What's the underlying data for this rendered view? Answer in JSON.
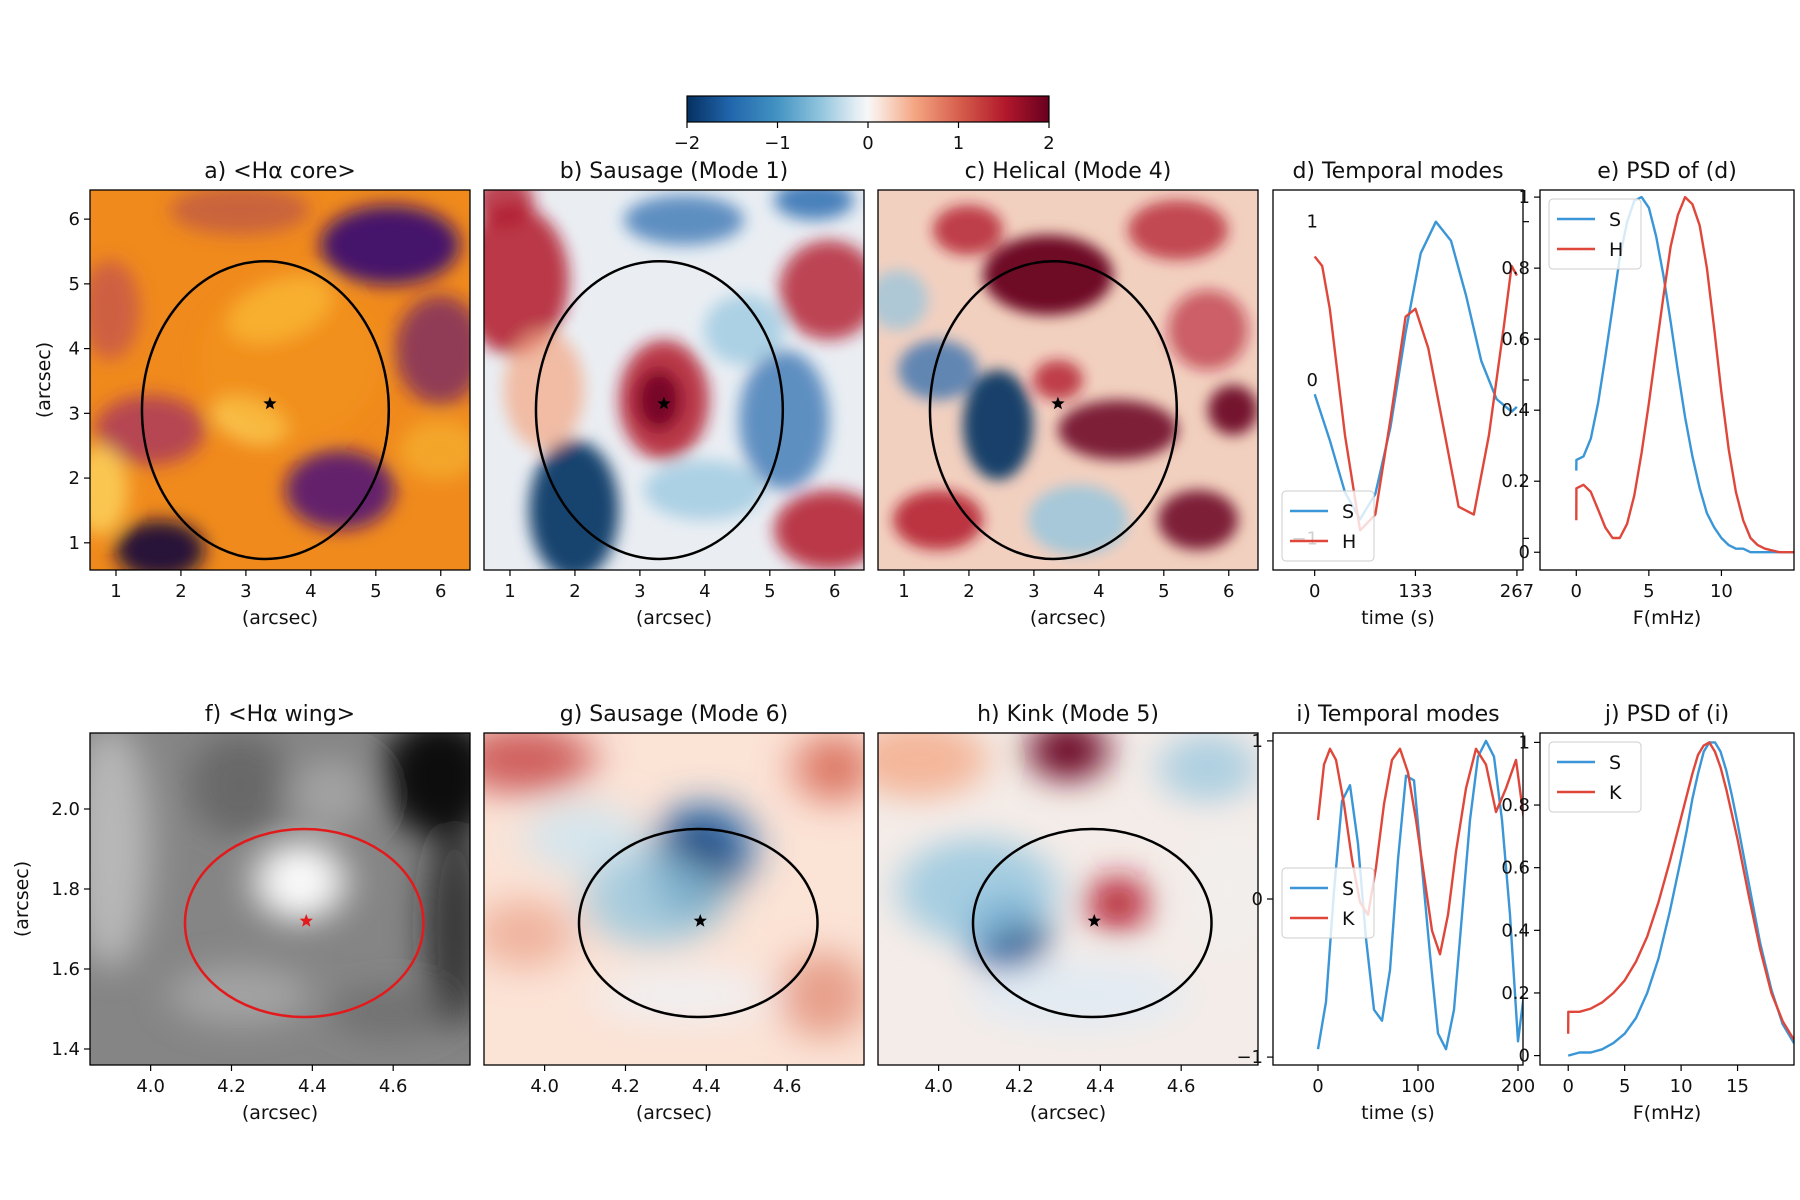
{
  "colors": {
    "S": "#3a96d6",
    "H": "#e0473b",
    "K": "#e0473b",
    "red_ellipse": "#e31a1c",
    "black": "#000000"
  },
  "colorbar": {
    "cmap": "RdBu_r",
    "range": [
      -2,
      2
    ],
    "ticks": [
      "−2",
      "−1",
      "0",
      "1",
      "2"
    ]
  },
  "chart_data": [
    {
      "id": "a",
      "type": "heatmap",
      "title": "a) <Hα core>",
      "cmap": "inferno-like",
      "xlabel": "(arcsec)",
      "ylabel": "(arcsec)",
      "xlim": [
        0.6,
        6.45
      ],
      "ylim": [
        0.58,
        6.45
      ],
      "xticks": [
        1,
        2,
        3,
        4,
        5,
        6
      ],
      "yticks": [
        1,
        2,
        3,
        4,
        5,
        6
      ],
      "ellipse": {
        "cx": 3.3,
        "cy": 3.05,
        "rx": 1.9,
        "ry": 2.3,
        "color": "black"
      },
      "marker": {
        "x": 3.37,
        "y": 3.15,
        "symbol": "star",
        "color": "black"
      }
    },
    {
      "id": "b",
      "type": "heatmap",
      "title": "b) Sausage (Mode 1)",
      "cmap": "RdBu_r",
      "xlabel": "(arcsec)",
      "xlim": [
        0.6,
        6.45
      ],
      "ylim": [
        0.58,
        6.45
      ],
      "xticks": [
        1,
        2,
        3,
        4,
        5,
        6
      ],
      "ellipse": {
        "cx": 3.3,
        "cy": 3.05,
        "rx": 1.9,
        "ry": 2.3,
        "color": "black"
      },
      "marker": {
        "x": 3.37,
        "y": 3.15,
        "symbol": "star",
        "color": "black"
      }
    },
    {
      "id": "c",
      "type": "heatmap",
      "title": "c) Helical (Mode 4)",
      "cmap": "RdBu_r",
      "xlabel": "(arcsec)",
      "xlim": [
        0.6,
        6.45
      ],
      "ylim": [
        0.58,
        6.45
      ],
      "xticks": [
        1,
        2,
        3,
        4,
        5,
        6
      ],
      "ellipse": {
        "cx": 3.3,
        "cy": 3.05,
        "rx": 1.9,
        "ry": 2.3,
        "color": "black"
      },
      "marker": {
        "x": 3.37,
        "y": 3.15,
        "symbol": "star",
        "color": "black"
      }
    },
    {
      "id": "d",
      "type": "line",
      "title": "d) Temporal modes",
      "xlabel": "time (s)",
      "xlim": [
        -55,
        275
      ],
      "ylim": [
        -1.2,
        1.2
      ],
      "xticks": [
        0,
        133,
        267
      ],
      "yticks": [
        -1,
        0,
        1
      ],
      "yticks_side": "right",
      "legend": "lower-left",
      "series": [
        {
          "name": "S",
          "color": "S",
          "x": [
            0,
            20,
            40,
            60,
            80,
            100,
            120,
            140,
            160,
            180,
            200,
            220,
            240,
            260,
            267
          ],
          "y": [
            -0.09,
            -0.38,
            -0.71,
            -0.88,
            -0.72,
            -0.3,
            0.3,
            0.8,
            1.0,
            0.88,
            0.53,
            0.12,
            -0.12,
            -0.2,
            -0.17
          ]
        },
        {
          "name": "H",
          "color": "H",
          "x": [
            0,
            10,
            20,
            30,
            40,
            60,
            80,
            100,
            120,
            133,
            150,
            170,
            190,
            210,
            230,
            250,
            260,
            267
          ],
          "y": [
            0.78,
            0.72,
            0.45,
            0.05,
            -0.35,
            -0.95,
            -0.85,
            -0.25,
            0.4,
            0.45,
            0.2,
            -0.3,
            -0.8,
            -0.85,
            -0.35,
            0.35,
            0.72,
            0.66
          ]
        }
      ]
    },
    {
      "id": "e",
      "type": "line",
      "title": "e) PSD of (d)",
      "xlabel": "F(mHz)",
      "xlim": [
        -2.5,
        15
      ],
      "ylim": [
        -0.05,
        1.02
      ],
      "xticks": [
        0,
        5,
        10
      ],
      "yticks": [
        0.0,
        0.2,
        0.4,
        0.6,
        0.8,
        1.0
      ],
      "legend": "top-left",
      "series": [
        {
          "name": "S",
          "color": "S",
          "x": [
            0,
            0.01,
            0.5,
            1,
            1.5,
            2,
            2.5,
            3,
            3.5,
            4,
            4.5,
            5,
            5.5,
            6,
            6.5,
            7,
            7.5,
            8,
            8.5,
            9,
            9.5,
            10,
            10.5,
            11,
            11.5,
            12,
            12.5,
            13,
            14,
            15
          ],
          "y": [
            0.23,
            0.26,
            0.27,
            0.32,
            0.42,
            0.55,
            0.69,
            0.83,
            0.93,
            0.99,
            1.0,
            0.97,
            0.89,
            0.78,
            0.65,
            0.51,
            0.38,
            0.27,
            0.18,
            0.11,
            0.07,
            0.04,
            0.02,
            0.01,
            0.01,
            0.0,
            0.0,
            0.0,
            0.0,
            0.0
          ]
        },
        {
          "name": "H",
          "color": "H",
          "x": [
            0,
            0.01,
            0.5,
            1,
            1.5,
            2,
            2.5,
            3,
            3.5,
            4,
            4.5,
            5,
            5.5,
            6,
            6.5,
            7,
            7.5,
            8,
            8.5,
            9,
            9.5,
            10,
            10.5,
            11,
            11.5,
            12,
            12.5,
            13,
            14,
            15
          ],
          "y": [
            0.09,
            0.18,
            0.19,
            0.17,
            0.12,
            0.07,
            0.04,
            0.04,
            0.08,
            0.16,
            0.28,
            0.42,
            0.57,
            0.72,
            0.86,
            0.95,
            1.0,
            0.98,
            0.92,
            0.8,
            0.63,
            0.45,
            0.29,
            0.17,
            0.09,
            0.04,
            0.02,
            0.01,
            0.0,
            0.0
          ]
        }
      ]
    },
    {
      "id": "f",
      "type": "heatmap",
      "title": "f) <Hα wing>",
      "cmap": "gray",
      "xlabel": "(arcsec)",
      "ylabel": "(arcsec)",
      "xlim": [
        3.85,
        4.79
      ],
      "ylim": [
        1.36,
        2.19
      ],
      "xticks": [
        4.0,
        4.2,
        4.4,
        4.6
      ],
      "xtick_labels": [
        "4.0",
        "4.2",
        "4.4",
        "4.6"
      ],
      "yticks": [
        1.4,
        1.6,
        1.8,
        2.0
      ],
      "ytick_labels": [
        "1.4",
        "1.6",
        "1.8",
        "2.0"
      ],
      "ellipse": {
        "cx": 4.38,
        "cy": 1.715,
        "rx": 0.295,
        "ry": 0.235,
        "color": "red"
      },
      "marker": {
        "x": 4.385,
        "y": 1.72,
        "symbol": "star",
        "color": "red"
      }
    },
    {
      "id": "g",
      "type": "heatmap",
      "title": "g) Sausage (Mode 6)",
      "cmap": "RdBu_r",
      "xlabel": "(arcsec)",
      "xlim": [
        3.85,
        4.79
      ],
      "ylim": [
        1.36,
        2.19
      ],
      "xticks": [
        4.0,
        4.2,
        4.4,
        4.6
      ],
      "xtick_labels": [
        "4.0",
        "4.2",
        "4.4",
        "4.6"
      ],
      "ellipse": {
        "cx": 4.38,
        "cy": 1.715,
        "rx": 0.295,
        "ry": 0.235,
        "color": "black"
      },
      "marker": {
        "x": 4.385,
        "y": 1.72,
        "symbol": "star",
        "color": "black"
      }
    },
    {
      "id": "h",
      "type": "heatmap",
      "title": "h) Kink (Mode 5)",
      "cmap": "RdBu_r",
      "xlabel": "(arcsec)",
      "xlim": [
        3.85,
        4.79
      ],
      "ylim": [
        1.36,
        2.19
      ],
      "xticks": [
        4.0,
        4.2,
        4.4,
        4.6
      ],
      "xtick_labels": [
        "4.0",
        "4.2",
        "4.4",
        "4.6"
      ],
      "ellipse": {
        "cx": 4.38,
        "cy": 1.715,
        "rx": 0.295,
        "ry": 0.235,
        "color": "black"
      },
      "marker": {
        "x": 4.385,
        "y": 1.72,
        "symbol": "star",
        "color": "black"
      }
    },
    {
      "id": "i",
      "type": "line",
      "title": "i) Temporal modes",
      "xlabel": "time (s)",
      "xlim": [
        -45,
        205
      ],
      "ylim": [
        -1.05,
        1.05
      ],
      "xticks": [
        0,
        100,
        200
      ],
      "yticks": [
        -1,
        0,
        1
      ],
      "legend": "center-left",
      "series": [
        {
          "name": "S",
          "color": "S",
          "x": [
            0,
            8,
            16,
            24,
            32,
            40,
            48,
            56,
            64,
            72,
            80,
            88,
            96,
            104,
            112,
            120,
            128,
            136,
            144,
            152,
            160,
            168,
            176,
            184,
            192,
            200,
            206
          ],
          "y": [
            -0.95,
            -0.65,
            0.05,
            0.62,
            0.72,
            0.35,
            -0.25,
            -0.7,
            -0.77,
            -0.45,
            0.25,
            0.78,
            0.75,
            0.2,
            -0.35,
            -0.85,
            -0.95,
            -0.7,
            -0.1,
            0.5,
            0.9,
            1.0,
            0.9,
            0.5,
            -0.1,
            -0.9,
            -0.6
          ]
        },
        {
          "name": "K",
          "color": "K",
          "x": [
            0,
            6,
            12,
            18,
            26,
            34,
            42,
            50,
            58,
            66,
            74,
            82,
            90,
            98,
            106,
            114,
            122,
            130,
            138,
            148,
            158,
            168,
            178,
            188,
            198,
            206
          ],
          "y": [
            0.5,
            0.85,
            0.95,
            0.88,
            0.6,
            0.25,
            -0.02,
            -0.1,
            0.2,
            0.6,
            0.88,
            0.95,
            0.8,
            0.5,
            0.15,
            -0.2,
            -0.35,
            -0.1,
            0.3,
            0.7,
            0.95,
            0.85,
            0.55,
            0.7,
            0.88,
            0.5
          ]
        }
      ]
    },
    {
      "id": "j",
      "type": "line",
      "title": "j) PSD of (i)",
      "xlabel": "F(mHz)",
      "xlim": [
        -2.5,
        20
      ],
      "ylim": [
        -0.03,
        1.03
      ],
      "xticks": [
        0,
        5,
        10,
        15
      ],
      "yticks": [
        0.0,
        0.2,
        0.4,
        0.6,
        0.8,
        1.0
      ],
      "legend": "top-left",
      "series": [
        {
          "name": "S",
          "color": "S",
          "x": [
            0,
            1,
            2,
            3,
            4,
            5,
            6,
            7,
            8,
            9,
            10,
            10.5,
            11,
            11.5,
            12,
            12.5,
            13,
            13.5,
            14,
            14.5,
            15,
            16,
            17,
            18,
            19,
            20
          ],
          "y": [
            0.0,
            0.01,
            0.01,
            0.02,
            0.04,
            0.07,
            0.12,
            0.2,
            0.31,
            0.46,
            0.63,
            0.72,
            0.82,
            0.9,
            0.97,
            1.0,
            1.0,
            0.97,
            0.91,
            0.83,
            0.74,
            0.55,
            0.36,
            0.21,
            0.1,
            0.04
          ]
        },
        {
          "name": "K",
          "color": "K",
          "x": [
            0,
            0.01,
            1,
            2,
            3,
            4,
            5,
            6,
            7,
            8,
            9,
            10,
            11,
            11.5,
            12,
            12.5,
            13,
            13.5,
            14,
            15,
            16,
            17,
            18,
            19,
            20
          ],
          "y": [
            0.07,
            0.14,
            0.14,
            0.15,
            0.17,
            0.2,
            0.24,
            0.3,
            0.38,
            0.49,
            0.62,
            0.76,
            0.9,
            0.96,
            0.99,
            1.0,
            0.97,
            0.92,
            0.85,
            0.69,
            0.51,
            0.34,
            0.2,
            0.11,
            0.05
          ]
        }
      ]
    }
  ]
}
